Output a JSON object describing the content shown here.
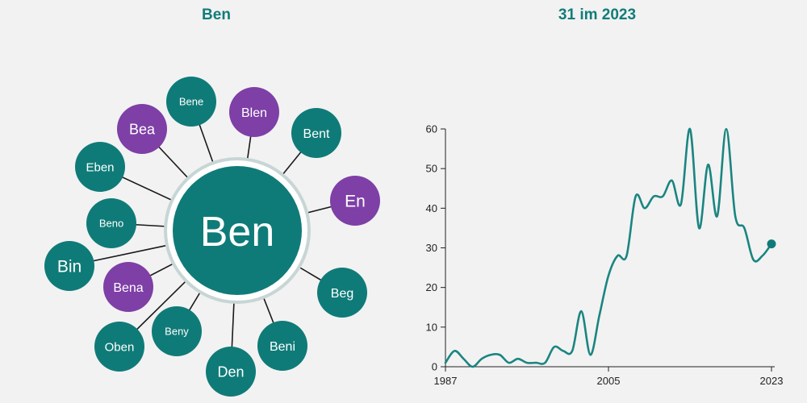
{
  "left_title": "Ben",
  "right_title": "31 im 2023",
  "colors": {
    "teal": "#0f7b78",
    "purple": "#7e3fa6",
    "line": "#1a8581",
    "center_ring": "#ffffff"
  },
  "network": {
    "center": "Ben",
    "nodes": [
      {
        "label": "Bene",
        "color": "teal"
      },
      {
        "label": "Blen",
        "color": "purple"
      },
      {
        "label": "Bent",
        "color": "teal"
      },
      {
        "label": "En",
        "color": "purple"
      },
      {
        "label": "Beg",
        "color": "teal"
      },
      {
        "label": "Beni",
        "color": "teal"
      },
      {
        "label": "Den",
        "color": "teal"
      },
      {
        "label": "Beny",
        "color": "teal"
      },
      {
        "label": "Oben",
        "color": "teal"
      },
      {
        "label": "Bena",
        "color": "purple"
      },
      {
        "label": "Bin",
        "color": "teal"
      },
      {
        "label": "Beno",
        "color": "teal"
      },
      {
        "label": "Eben",
        "color": "teal"
      },
      {
        "label": "Bea",
        "color": "purple"
      }
    ]
  },
  "chart_data": {
    "type": "line",
    "title": "31 im 2023",
    "x_ticks": [
      "1987",
      "2005",
      "2023"
    ],
    "y_ticks": [
      0,
      10,
      20,
      30,
      40,
      50,
      60
    ],
    "ylim": [
      0,
      60
    ],
    "xlim": [
      1987,
      2023
    ],
    "grid": false,
    "series": [
      {
        "x": [
          1987,
          1988,
          1989,
          1990,
          1991,
          1992,
          1993,
          1994,
          1995,
          1996,
          1997,
          1998,
          1999,
          2000,
          2001,
          2002,
          2003,
          2004,
          2005,
          2006,
          2007,
          2008,
          2009,
          2010,
          2011,
          2012,
          2013,
          2014,
          2015,
          2016,
          2017,
          2018,
          2019,
          2020,
          2021,
          2022,
          2023
        ],
        "y": [
          1,
          4,
          2,
          0,
          2,
          3,
          3,
          1,
          2,
          1,
          1,
          1,
          5,
          4,
          4,
          14,
          3,
          13,
          23,
          28,
          28,
          43,
          40,
          43,
          43,
          47,
          41,
          60,
          35,
          51,
          38,
          60,
          38,
          35,
          27,
          28,
          31
        ]
      }
    ],
    "last_point": {
      "x": 2023,
      "y": 31
    }
  }
}
